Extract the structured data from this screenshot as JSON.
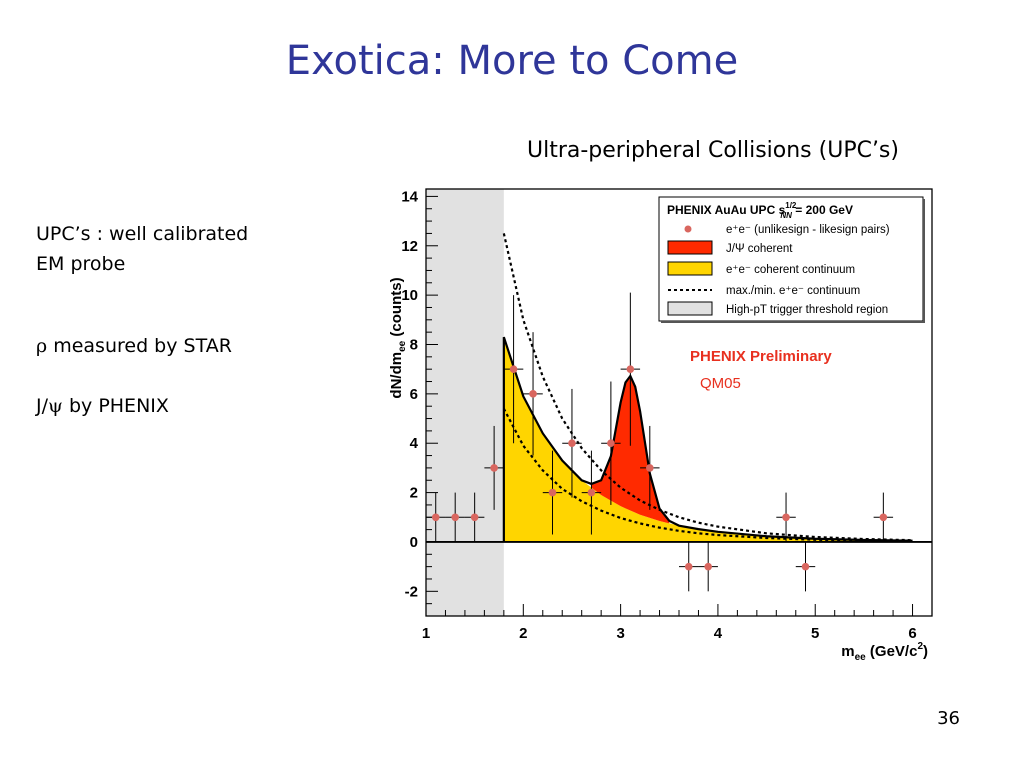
{
  "slide": {
    "title": "Exotica: More to Come",
    "subtitle": "Ultra-peripheral Collisions (UPC’s)",
    "bullets": [
      "UPC’s : well calibrated",
      "EM probe",
      "measured by STAR",
      "by PHENIX"
    ],
    "bullet_symbols": {
      "rho": "ρ",
      "jpsi_prefix": "J/",
      "psi": "ψ"
    },
    "page_number": "36"
  },
  "chart_data": {
    "type": "scatter",
    "xlabel_main": "m",
    "xlabel_sub": "ee",
    "xlabel_unit": " (GeV/c",
    "xlabel_sup": "2",
    "xlabel_close": ")",
    "ylabel": "dN/dm",
    "ylabel_sub": "ee",
    "ylabel_unit": " (counts)",
    "xlim": [
      1,
      6.2
    ],
    "ylim": [
      -3,
      14.3
    ],
    "x_ticks": [
      "1",
      "2",
      "3",
      "4",
      "5",
      "6"
    ],
    "y_ticks": [
      "-2",
      "0",
      "2",
      "4",
      "6",
      "8",
      "10",
      "12",
      "14"
    ],
    "grid": false,
    "legend_position": "top-right",
    "legend": {
      "header": "PHENIX AuAu UPC s",
      "header_sup": "1/2",
      "header_sub": "NN",
      "header_tail": " = 200 GeV",
      "entries": [
        "e⁺e⁻ (unlikesign - likesign pairs)",
        "J/Ψ coherent",
        "e⁺e⁻ coherent continuum",
        "max./min. e⁺e⁻ continuum",
        "High-pT trigger threshold region"
      ]
    },
    "annotations": {
      "preliminary": "PHENIX Preliminary",
      "conference": "QM05"
    },
    "threshold_region": [
      1,
      1.8
    ],
    "series": [
      {
        "name": "e⁺e⁻ (unlikesign - likesign pairs)",
        "x": [
          1.1,
          1.3,
          1.5,
          1.7,
          1.9,
          2.1,
          2.3,
          2.5,
          2.7,
          2.9,
          3.1,
          3.3,
          3.7,
          3.9,
          4.7,
          4.9,
          5.7
        ],
        "y": [
          1,
          1,
          1,
          3,
          7,
          6,
          2,
          4,
          2,
          4,
          7,
          3,
          -1,
          -1,
          1,
          -1,
          1
        ],
        "yerr": [
          1,
          1,
          1,
          1.7,
          3,
          2.5,
          1.7,
          2.2,
          1.7,
          2.5,
          3.1,
          1.7,
          1,
          1,
          1,
          1,
          1
        ]
      },
      {
        "name": "e⁺e⁻ coherent continuum",
        "x": [
          1.8,
          2.0,
          2.2,
          2.4,
          2.6,
          2.8,
          3.0,
          3.2,
          3.4,
          3.6,
          3.8,
          4.0,
          4.5,
          5.0,
          5.5,
          6.0
        ],
        "y": [
          8.3,
          5.9,
          4.4,
          3.3,
          2.5,
          1.9,
          1.45,
          1.1,
          0.85,
          0.66,
          0.52,
          0.41,
          0.23,
          0.13,
          0.08,
          0.05
        ]
      },
      {
        "name": "J/Ψ coherent",
        "x": [
          2.7,
          2.8,
          2.9,
          3.0,
          3.05,
          3.1,
          3.15,
          3.2,
          3.3,
          3.4,
          3.5
        ],
        "y": [
          0.15,
          0.6,
          1.8,
          4.2,
          5.1,
          5.45,
          5.1,
          4.2,
          1.8,
          0.5,
          0.1
        ]
      },
      {
        "name": "max. e⁺e⁻ continuum",
        "x": [
          1.8,
          2.0,
          2.2,
          2.4,
          2.6,
          2.8,
          3.0,
          3.2,
          3.4,
          3.6,
          3.8,
          4.0,
          4.5,
          5.0,
          5.5,
          6.0
        ],
        "y": [
          12.5,
          9.0,
          6.7,
          5.0,
          3.8,
          2.9,
          2.2,
          1.68,
          1.3,
          1.0,
          0.78,
          0.62,
          0.35,
          0.2,
          0.12,
          0.07
        ]
      },
      {
        "name": "min. e⁺e⁻ continuum",
        "x": [
          1.8,
          2.0,
          2.2,
          2.4,
          2.6,
          2.8,
          3.0,
          3.2,
          3.4,
          3.6,
          3.8,
          4.0,
          4.5,
          5.0,
          5.5,
          6.0
        ],
        "y": [
          5.4,
          3.9,
          2.9,
          2.15,
          1.65,
          1.27,
          0.97,
          0.75,
          0.58,
          0.45,
          0.35,
          0.28,
          0.16,
          0.09,
          0.05,
          0.03
        ]
      }
    ],
    "colors": {
      "points": "#d9665f",
      "jpsi": "#ff2a00",
      "continuum": "#ffd500",
      "threshold": "#e1e1e1",
      "curve": "#000000"
    }
  }
}
